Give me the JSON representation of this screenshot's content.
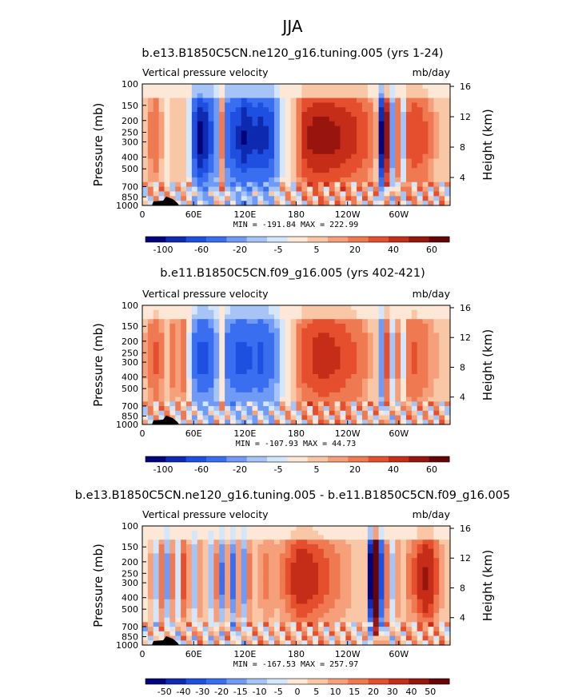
{
  "figure_title": "JJA",
  "chart_data": [
    {
      "type": "heatmap",
      "title": "b.e13.B1850C5CN.ne120_g16.tuning.005 (yrs 1-24)",
      "variable": "Vertical pressure velocity",
      "units": "mb/day",
      "xlabel": "",
      "ylabel": "Pressure (mb)",
      "ylabel_right": "Height (km)",
      "x_ticks": [
        "0",
        "60E",
        "120E",
        "180",
        "120W",
        "60W"
      ],
      "y_ticks": [
        "100",
        "150",
        "200",
        "250",
        "300",
        "400",
        "500",
        "700",
        "850",
        "1000"
      ],
      "y_ticks_right": [
        "16",
        "12",
        "8",
        "4"
      ],
      "stats": "MIN = -191.84   MAX = 222.99",
      "colorbar_labels": [
        "-100",
        "-60",
        "-20",
        "-5",
        "5",
        "20",
        "40",
        "60"
      ],
      "colorbar_levels": [
        -100,
        -80,
        -60,
        -40,
        -20,
        -10,
        -5,
        0,
        5,
        10,
        20,
        30,
        40,
        60,
        80
      ],
      "profile": [
        2,
        10,
        14,
        5,
        -2,
        4,
        1,
        2,
        -8,
        -60,
        -90,
        -80,
        -55,
        -30,
        10,
        -50,
        -60,
        -70,
        -85,
        -75,
        -70,
        -75,
        -70,
        -60,
        -30,
        -8,
        -2,
        3,
        15,
        30,
        35,
        38,
        38,
        38,
        36,
        35,
        32,
        30,
        28,
        24,
        20,
        12,
        5,
        -90,
        40,
        -25,
        15,
        -10,
        20,
        25,
        22,
        18,
        10,
        5,
        2,
        1
      ]
    },
    {
      "type": "heatmap",
      "title": "b.e11.B1850C5CN.f09_g16.005 (yrs 402-421)",
      "variable": "Vertical pressure velocity",
      "units": "mb/day",
      "xlabel": "",
      "ylabel": "Pressure (mb)",
      "ylabel_right": "Height (km)",
      "x_ticks": [
        "0",
        "60E",
        "120E",
        "180",
        "120W",
        "60W"
      ],
      "y_ticks": [
        "100",
        "150",
        "200",
        "250",
        "300",
        "400",
        "500",
        "700",
        "850",
        "1000"
      ],
      "y_ticks_right": [
        "16",
        "12",
        "8",
        "4"
      ],
      "stats": "MIN = -107.93   MAX =  44.73",
      "colorbar_labels": [
        "-100",
        "-60",
        "-20",
        "-5",
        "5",
        "20",
        "40",
        "60"
      ],
      "colorbar_levels": [
        -100,
        -80,
        -60,
        -40,
        -20,
        -10,
        -5,
        0,
        5,
        10,
        20,
        30,
        40,
        60,
        80
      ],
      "profile": [
        5,
        12,
        18,
        10,
        4,
        12,
        8,
        14,
        -5,
        -40,
        -55,
        -55,
        -45,
        -20,
        -2,
        -40,
        -50,
        -55,
        -55,
        -52,
        -50,
        -55,
        -50,
        -40,
        -22,
        -8,
        -2,
        3,
        12,
        22,
        25,
        28,
        30,
        30,
        28,
        26,
        24,
        20,
        18,
        15,
        10,
        5,
        0,
        -30,
        20,
        -10,
        10,
        -5,
        15,
        18,
        15,
        12,
        8,
        5,
        3,
        2
      ]
    },
    {
      "type": "heatmap",
      "title": "b.e13.B1850C5CN.ne120_g16.tuning.005 - b.e11.B1850C5CN.f09_g16.005",
      "variable": "Vertical pressure velocity",
      "units": "mb/day",
      "xlabel": "",
      "ylabel": "Pressure (mb)",
      "ylabel_right": "Height (km)",
      "x_ticks": [
        "0",
        "60E",
        "120E",
        "180",
        "120W",
        "60W"
      ],
      "y_ticks": [
        "100",
        "150",
        "200",
        "250",
        "300",
        "400",
        "500",
        "700",
        "850",
        "1000"
      ],
      "y_ticks_right": [
        "16",
        "12",
        "8",
        "4"
      ],
      "stats": "MIN = -167.53   MAX = 257.97",
      "colorbar_labels": [
        "-50",
        "-40",
        "-30",
        "-20",
        "-15",
        "-10",
        "-5",
        "0",
        "5",
        "10",
        "15",
        "20",
        "30",
        "40",
        "50"
      ],
      "colorbar_levels": [
        -50,
        -40,
        -30,
        -20,
        -15,
        -10,
        -5,
        0,
        5,
        10,
        15,
        20,
        30,
        40,
        50
      ],
      "profile": [
        -2,
        5,
        -10,
        12,
        -15,
        10,
        -8,
        15,
        6,
        -12,
        8,
        4,
        -12,
        10,
        -18,
        6,
        -20,
        8,
        -16,
        10,
        4,
        6,
        10,
        8,
        6,
        10,
        14,
        18,
        22,
        22,
        20,
        18,
        16,
        14,
        12,
        10,
        8,
        6,
        4,
        2,
        4,
        -50,
        60,
        -30,
        12,
        -10,
        8,
        4,
        10,
        14,
        20,
        26,
        22,
        14,
        6,
        2
      ]
    }
  ],
  "colors": {
    "blue_scale": [
      "#04047a",
      "#0d2ab0",
      "#1f4fe0",
      "#3a6ef0",
      "#6f9af5",
      "#a6c4f5",
      "#d4e6fb"
    ],
    "red_scale": [
      "#fde7d6",
      "#f9c7a6",
      "#f5a07b",
      "#ef7a52",
      "#e54f2d",
      "#c62d18",
      "#98150e",
      "#650505"
    ],
    "topography": "#000000"
  }
}
